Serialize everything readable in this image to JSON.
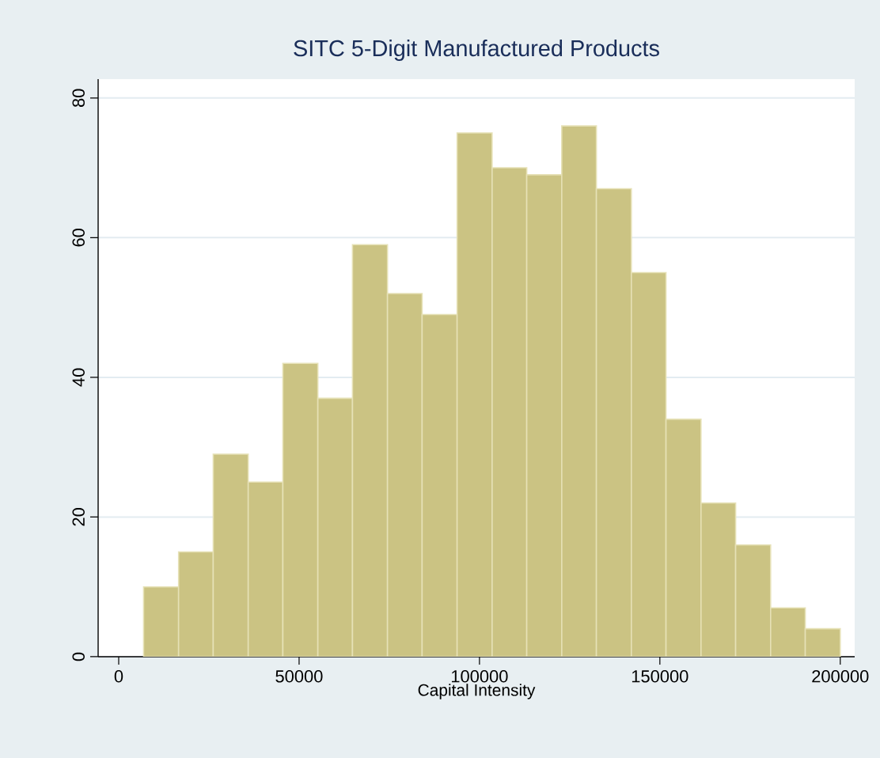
{
  "chart_data": {
    "type": "histogram",
    "title": "SITC 5-Digit Manufactured Products",
    "xlabel": "Capital Intensity",
    "bins": [
      6900,
      16600,
      26200,
      35900,
      45500,
      55200,
      64800,
      74500,
      84100,
      93800,
      103500,
      113100,
      122800,
      132400,
      142100,
      151700,
      161400,
      171000,
      180700,
      190300,
      200000
    ],
    "values": [
      10,
      15,
      29,
      25,
      42,
      37,
      59,
      52,
      49,
      75,
      70,
      69,
      76,
      67,
      55,
      34,
      22,
      16,
      7,
      4
    ],
    "color": "#cbc383",
    "xlim": [
      -5700,
      204000
    ],
    "ylim": [
      0,
      82.7
    ],
    "xticks": [
      0,
      50000,
      100000,
      150000,
      200000
    ],
    "yticks": [
      0,
      20,
      40,
      60,
      80
    ],
    "grid": "y"
  }
}
